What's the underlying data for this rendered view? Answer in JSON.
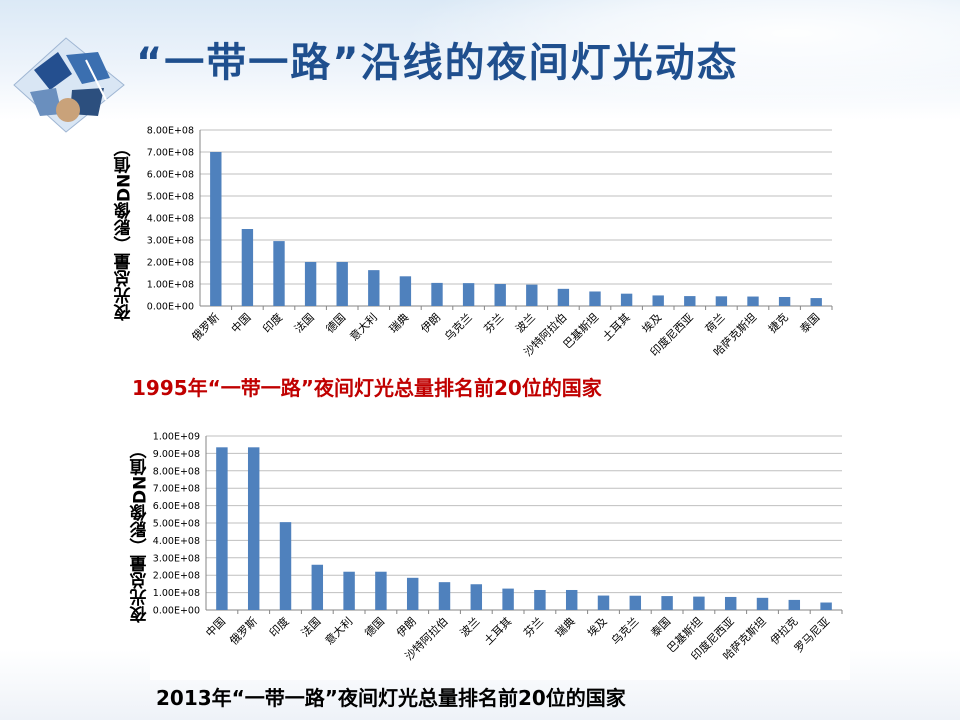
{
  "title": "“一带一路”沿线的夜间灯光动态",
  "bar_color": "#4f81bd",
  "title_color": "#1f4f8e",
  "caption_colors": [
    "#c00000",
    "#000000"
  ],
  "chart_data": [
    {
      "type": "bar",
      "caption": "1995年“一带一路”夜间灯光总量排名前20位的国家",
      "ylabel": "夜光总量（影像DN值）",
      "ylim": [
        0,
        800000000
      ],
      "yticks": [
        "0.00E+00",
        "1.00E+08",
        "2.00E+08",
        "3.00E+08",
        "4.00E+08",
        "5.00E+08",
        "6.00E+08",
        "7.00E+08",
        "8.00E+08"
      ],
      "grid": true,
      "categories": [
        "俄罗斯",
        "中国",
        "印度",
        "法国",
        "德国",
        "意大利",
        "瑞典",
        "伊朗",
        "乌克兰",
        "芬兰",
        "波兰",
        "沙特阿拉伯",
        "巴基斯坦",
        "土耳其",
        "埃及",
        "印度尼西亚",
        "荷兰",
        "哈萨克斯坦",
        "捷克",
        "泰国"
      ],
      "values": [
        700000000,
        350000000,
        295000000,
        200000000,
        200000000,
        163000000,
        135000000,
        105000000,
        104000000,
        100000000,
        97000000,
        78000000,
        66000000,
        56000000,
        48000000,
        45000000,
        44000000,
        43000000,
        41000000,
        36000000
      ]
    },
    {
      "type": "bar",
      "caption": "2013年“一带一路”夜间灯光总量排名前20位的国家",
      "ylabel": "夜光总量（影像DN值）",
      "ylim": [
        0,
        1000000000
      ],
      "yticks": [
        "0.00E+00",
        "1.00E+08",
        "2.00E+08",
        "3.00E+08",
        "4.00E+08",
        "5.00E+08",
        "6.00E+08",
        "7.00E+08",
        "8.00E+08",
        "9.00E+08",
        "1.00E+09"
      ],
      "grid": true,
      "categories": [
        "中国",
        "俄罗斯",
        "印度",
        "法国",
        "意大利",
        "德国",
        "伊朗",
        "沙特阿拉伯",
        "波兰",
        "土耳其",
        "芬兰",
        "瑞典",
        "埃及",
        "乌克兰",
        "泰国",
        "巴基斯坦",
        "印度尼西亚",
        "哈萨克斯坦",
        "伊拉克",
        "罗马尼亚"
      ],
      "values": [
        935000000,
        935000000,
        505000000,
        260000000,
        220000000,
        220000000,
        185000000,
        160000000,
        148000000,
        123000000,
        115000000,
        115000000,
        83000000,
        82000000,
        80000000,
        77000000,
        75000000,
        70000000,
        58000000,
        43000000
      ]
    }
  ]
}
